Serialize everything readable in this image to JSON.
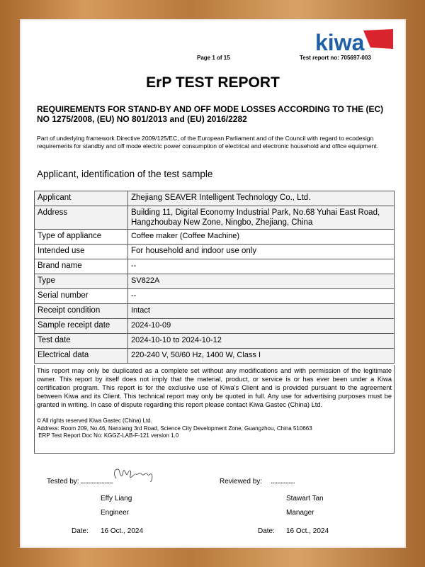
{
  "header": {
    "logo_text": "kiwa",
    "page": "Page 1 of 15",
    "report_no": "Test report no: 705697-003"
  },
  "title": "ErP TEST REPORT",
  "requirements": "REQUIREMENTS FOR STAND-BY AND OFF MODE LOSSES ACCORDING TO THE (EC) NO 1275/2008, (EU) NO 801/2013 and (EU) 2016/2282",
  "intro": "Part of underlying framework Directive 2009/125/EC, of the European Parliament and of the Council with regard to ecodesign requirements for standby and off mode electric power consumption of electrical and electronic household and office equipment.",
  "section_title": "Applicant, identification of the test sample",
  "rows": [
    {
      "label": "Applicant",
      "value": "Zhejiang SEAVER Intelligent Technology Co., Ltd."
    },
    {
      "label": "Address",
      "value": "Building 11, Digital Economy Industrial Park, No.68 Yuhai East Road, Hangzhoubay New Zone, Ningbo, Zhejiang, China"
    },
    {
      "label": "Type of appliance",
      "value": "Coffee maker (Coffee Machine)"
    },
    {
      "label": "Intended use",
      "value": "For household and indoor use only"
    },
    {
      "label": "Brand name",
      "value": "--"
    },
    {
      "label": "Type",
      "value": "SV822A"
    },
    {
      "label": "Serial number",
      "value": "--"
    },
    {
      "label": "Receipt condition",
      "value": "Intact"
    },
    {
      "label": "Sample receipt date",
      "value": "2024-10-09"
    },
    {
      "label": "Test date",
      "value": "2024-10-10 to 2024-10-12"
    },
    {
      "label": "Electrical data",
      "value": "220-240 V, 50/60 Hz, 1400 W, Class I"
    }
  ],
  "disclaimer": "This report may only be duplicated as a complete set without any modifications and with permission of the legitimate owner. This report by itself does not imply that the material, product, or service is or has ever been under a Kiwa certification program. This report is for the exclusive use of Kiwa's Client and is provided pursuant to the agreement between Kiwa and its Client. This technical report may only be quoted in full. Any use for advertising purposes must be granted in writing.  In case of dispute regarding this report please contact Kiwa Gastec (China) Ltd.",
  "copyright": "© All rights reserved Kiwa Gastec (China) Ltd.",
  "address": "Address: Room 209, No.46, Nanxiang 3rd Road, Science City Development Zone, Guangzhou, China 510663",
  "doc_no": " ERP Test Report Doc No: KGGZ-LAB-F-121 version 1.0",
  "signatures": {
    "tested_label": "Tested by:",
    "tested_dots": "..........................",
    "tested_signature": "Effy liang",
    "tested_name": "Effy Liang",
    "tested_role": "Engineer",
    "tested_date_label": "Date:",
    "tested_date": "16 Oct., 2024",
    "reviewed_label": "Reviewed by:",
    "reviewed_dots": "...................",
    "reviewed_name": "Stawart Tan",
    "reviewed_role": "Manager",
    "reviewed_date_label": "Date:",
    "reviewed_date": "16 Oct., 2024"
  },
  "colors": {
    "kiwa_blue": "#1f5fa8",
    "kiwa_red": "#d9232d",
    "frame": "#c48a4e"
  }
}
